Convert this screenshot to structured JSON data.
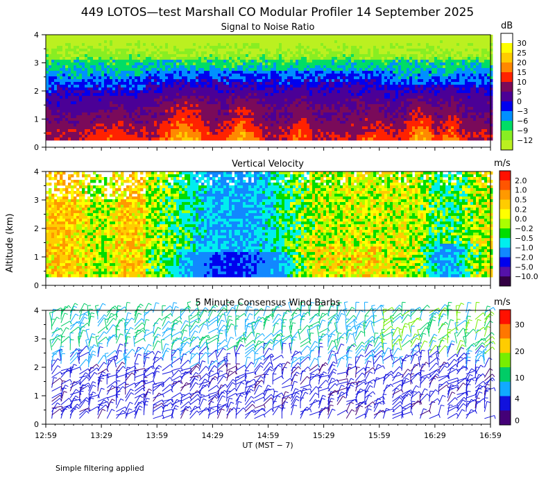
{
  "title": "449 LOTOS—test Marshall CO Modular Profiler 14 September 2025",
  "y_axis_label": "Altitude (km)",
  "x_axis_label": "UT  (MST − 7)",
  "x_tick_labels": [
    "12:59",
    "13:29",
    "13:59",
    "14:29",
    "14:59",
    "15:29",
    "15:59",
    "16:29",
    "16:59"
  ],
  "y_tick_labels": [
    "0",
    "1",
    "2",
    "3",
    "4"
  ],
  "footnote": "Simple filtering applied",
  "chart_data": [
    {
      "type": "heatmap",
      "title": "Signal to Noise Ratio",
      "unit": "dB",
      "x_range": [
        "12:59",
        "16:59"
      ],
      "ylim": [
        0,
        4
      ],
      "ylabel": "Altitude (km)",
      "colorbar": {
        "labels": [
          "30",
          "25",
          "20",
          "15",
          "10",
          "5",
          "0",
          "−3",
          "−6",
          "−9",
          "−12"
        ],
        "colors": [
          "#ffffff",
          "#ffff00",
          "#ffcc00",
          "#ff8800",
          "#ff2200",
          "#7a0a5a",
          "#4b0096",
          "#0000ee",
          "#0090ff",
          "#00dd66",
          "#88ee22",
          "#bbf020"
        ]
      }
    },
    {
      "type": "heatmap",
      "title": "Vertical Velocity",
      "unit": "m/s",
      "x_range": [
        "12:59",
        "16:59"
      ],
      "ylim": [
        0,
        4
      ],
      "ylabel": "Altitude (km)",
      "colorbar": {
        "labels": [
          "2.0",
          "1.0",
          "0.5",
          "0.2",
          "0.0",
          "−0.2",
          "−0.5",
          "−1.0",
          "−2.0",
          "−5.0",
          "−10.0"
        ],
        "colors": [
          "#ff1100",
          "#ff5500",
          "#ff9900",
          "#ffcc00",
          "#ffff00",
          "#aaff00",
          "#00dd00",
          "#00eeee",
          "#1188ff",
          "#0000ee",
          "#5511aa",
          "#330044"
        ]
      }
    },
    {
      "type": "barbs",
      "title": "5 Minute Consensus Wind Barbs",
      "unit": "m/s",
      "x_range": [
        "12:59",
        "16:59"
      ],
      "ylim": [
        0,
        4
      ],
      "ylabel": "Altitude (km)",
      "colorbar": {
        "labels": [
          "30",
          "20",
          "10",
          "4",
          "0"
        ],
        "colors": [
          "#ff1100",
          "#ff7700",
          "#ffcc00",
          "#77ee00",
          "#00cc66",
          "#11aaff",
          "#1111dd",
          "#440077"
        ]
      }
    }
  ]
}
